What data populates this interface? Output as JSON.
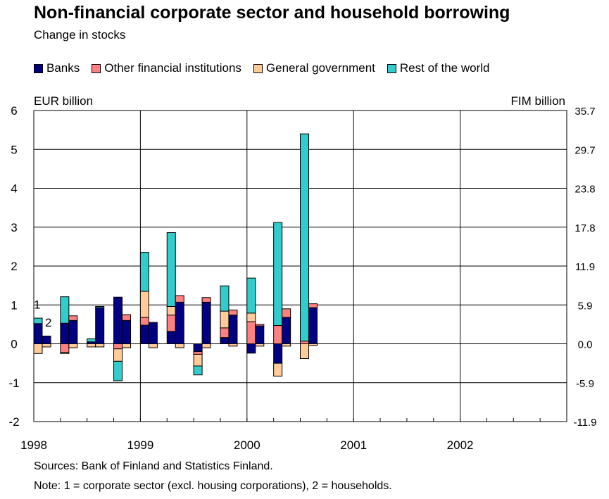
{
  "chart_data": {
    "type": "bar",
    "stacked": true,
    "title": "Non-financial corporate sector and household borrowing",
    "subtitle": "Change in stocks",
    "ylabel_left": "EUR billion",
    "ylabel_right": "FIM billion",
    "ylim": [
      -2,
      6
    ],
    "yticks_left": [
      "6",
      "5",
      "4",
      "3",
      "2",
      "1",
      "0",
      "-1",
      "-2"
    ],
    "yticks_right": [
      "35.7",
      "29.7",
      "23.8",
      "17.8",
      "11.9",
      "5.9",
      "0.0",
      "-5.9",
      "-11.9"
    ],
    "x_labels": [
      "1998",
      "1999",
      "2000",
      "2001",
      "2002"
    ],
    "grid": true,
    "legend_position": "top",
    "series_labels": [
      "1",
      "2"
    ],
    "series": [
      {
        "name": "Banks",
        "color": "#000080"
      },
      {
        "name": "Other financial institutions",
        "color": "#ff8080"
      },
      {
        "name": "General government",
        "color": "#ffcc99"
      },
      {
        "name": "Rest of the world",
        "color": "#33cccc"
      }
    ],
    "bars": [
      {
        "quarter": "1998Q1",
        "group": "corporate",
        "values": [
          0.52,
          0.0,
          -0.25,
          0.14
        ]
      },
      {
        "quarter": "1998Q1",
        "group": "household",
        "values": [
          0.2,
          0.0,
          -0.08,
          0.0
        ]
      },
      {
        "quarter": "1998Q2",
        "group": "corporate",
        "values": [
          0.53,
          -0.22,
          -0.03,
          0.68
        ]
      },
      {
        "quarter": "1998Q2",
        "group": "household",
        "values": [
          0.6,
          0.12,
          -0.1,
          0.0
        ]
      },
      {
        "quarter": "1998Q3",
        "group": "corporate",
        "values": [
          0.05,
          0.0,
          -0.08,
          0.08
        ]
      },
      {
        "quarter": "1998Q3",
        "group": "household",
        "values": [
          0.93,
          0.0,
          -0.08,
          0.03
        ]
      },
      {
        "quarter": "1998Q4",
        "group": "corporate",
        "values": [
          1.2,
          -0.13,
          -0.32,
          -0.5
        ]
      },
      {
        "quarter": "1998Q4",
        "group": "household",
        "values": [
          0.6,
          0.15,
          -0.1,
          0.0
        ]
      },
      {
        "quarter": "1999Q1",
        "group": "corporate",
        "values": [
          0.48,
          0.2,
          0.67,
          1.0
        ]
      },
      {
        "quarter": "1999Q1",
        "group": "household",
        "values": [
          0.55,
          0.0,
          -0.1,
          0.0
        ]
      },
      {
        "quarter": "1999Q2",
        "group": "corporate",
        "values": [
          0.32,
          0.42,
          0.22,
          1.9
        ]
      },
      {
        "quarter": "1999Q2",
        "group": "household",
        "values": [
          1.07,
          0.17,
          -0.1,
          0.0
        ]
      },
      {
        "quarter": "1999Q3",
        "group": "corporate",
        "values": [
          -0.2,
          -0.07,
          -0.3,
          -0.23
        ]
      },
      {
        "quarter": "1999Q3",
        "group": "household",
        "values": [
          1.07,
          0.12,
          -0.1,
          0.0
        ]
      },
      {
        "quarter": "1999Q4",
        "group": "corporate",
        "values": [
          0.16,
          0.25,
          0.43,
          0.65
        ]
      },
      {
        "quarter": "1999Q4",
        "group": "household",
        "values": [
          0.74,
          0.13,
          -0.06,
          0.0
        ]
      },
      {
        "quarter": "2000Q1",
        "group": "corporate",
        "values": [
          -0.24,
          0.57,
          0.22,
          0.9
        ]
      },
      {
        "quarter": "2000Q1",
        "group": "household",
        "values": [
          0.46,
          0.04,
          -0.06,
          0.0
        ]
      },
      {
        "quarter": "2000Q2",
        "group": "corporate",
        "values": [
          -0.5,
          0.47,
          -0.33,
          2.65
        ]
      },
      {
        "quarter": "2000Q2",
        "group": "household",
        "values": [
          0.68,
          0.22,
          -0.06,
          0.0
        ]
      },
      {
        "quarter": "2000Q3",
        "group": "corporate",
        "values": [
          0.0,
          0.07,
          -0.38,
          5.33
        ]
      },
      {
        "quarter": "2000Q3",
        "group": "household",
        "values": [
          0.93,
          0.1,
          -0.04,
          0.0
        ]
      }
    ]
  },
  "legend": {
    "banks": "Banks",
    "ofi": "Other financial institutions",
    "gov": "General government",
    "row": "Rest of the world"
  },
  "colors": {
    "banks": "#000080",
    "ofi": "#ff8080",
    "gov": "#ffcc99",
    "row": "#33cccc"
  },
  "footer": {
    "sources": "Sources: Bank of Finland and Statistics Finland.",
    "note": "Note: 1 = corporate sector (excl. housing corporations), 2 = households."
  }
}
